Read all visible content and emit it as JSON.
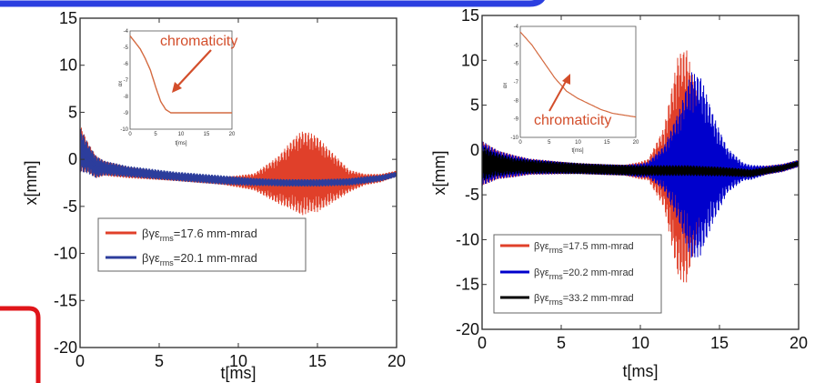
{
  "decor": {
    "frame_color": "#2b3fe0",
    "corner_color": "#e0151a"
  },
  "chart_data": [
    {
      "type": "line",
      "xlabel": "t[ms]",
      "ylabel": "x[mm]",
      "xlim": [
        0,
        20
      ],
      "ylim": [
        -20,
        15
      ],
      "xticks": [
        0,
        5,
        10,
        15,
        20
      ],
      "yticks": [
        -20,
        -15,
        -10,
        -5,
        0,
        5,
        10,
        15
      ],
      "legend_position": "lower-left",
      "series": [
        {
          "legend_prefix": "βγε",
          "legend_sub": "rms",
          "legend_value": "=17.6 mm-mrad",
          "color": "#e0402a",
          "envelope": [
            [
              0,
              1.2
            ],
            [
              1,
              -0.8
            ],
            [
              3,
              -1.4
            ],
            [
              6,
              -1.9
            ],
            [
              9,
              -2.3
            ],
            [
              11,
              -2.4
            ],
            [
              12.5,
              -2.2
            ],
            [
              13.5,
              -1.6
            ],
            [
              14.5,
              -1.4
            ],
            [
              15.5,
              -1.8
            ],
            [
              17,
              -2.3
            ],
            [
              19,
              -2.0
            ],
            [
              20,
              -1.5
            ]
          ],
          "amplitude": [
            [
              0,
              2.5
            ],
            [
              0.5,
              1.6
            ],
            [
              1.5,
              0.8
            ],
            [
              3,
              0.6
            ],
            [
              6,
              0.4
            ],
            [
              9,
              0.4
            ],
            [
              11,
              0.9
            ],
            [
              12.5,
              2.5
            ],
            [
              14,
              4.5
            ],
            [
              15,
              4.0
            ],
            [
              16,
              2.6
            ],
            [
              17,
              1.2
            ],
            [
              18,
              0.6
            ],
            [
              20,
              0.3
            ]
          ]
        },
        {
          "legend_prefix": "βγε",
          "legend_sub": "rms",
          "legend_value": "=20.1 mm-mrad",
          "color": "#2c3d9c",
          "envelope": [
            [
              0,
              1.0
            ],
            [
              1,
              -0.8
            ],
            [
              3,
              -1.3
            ],
            [
              6,
              -1.8
            ],
            [
              9,
              -2.2
            ],
            [
              11,
              -2.4
            ],
            [
              13,
              -2.5
            ],
            [
              15,
              -2.5
            ],
            [
              17,
              -2.4
            ],
            [
              19,
              -2.0
            ],
            [
              20,
              -1.6
            ]
          ],
          "amplitude": [
            [
              0,
              2.4
            ],
            [
              0.5,
              1.6
            ],
            [
              1.5,
              0.8
            ],
            [
              3,
              0.6
            ],
            [
              6,
              0.5
            ],
            [
              9,
              0.5
            ],
            [
              12,
              0.4
            ],
            [
              15,
              0.4
            ],
            [
              18,
              0.4
            ],
            [
              20,
              0.3
            ]
          ]
        }
      ],
      "inset": {
        "ylabel": "αx",
        "xticks": [
          0,
          5,
          10,
          15,
          20
        ],
        "xlim": [
          0,
          20
        ],
        "yticks": [
          -4,
          -5,
          -6,
          -7,
          -8,
          -9,
          -10
        ],
        "ylim": [
          -10,
          -4
        ],
        "xlabel": "t[ms]",
        "curve": [
          [
            0,
            -4.3
          ],
          [
            1,
            -4.7
          ],
          [
            2,
            -5.1
          ],
          [
            3,
            -5.7
          ],
          [
            4,
            -6.4
          ],
          [
            5,
            -7.4
          ],
          [
            6,
            -8.3
          ],
          [
            7,
            -8.8
          ],
          [
            8,
            -9.0
          ],
          [
            10,
            -9.0
          ],
          [
            20,
            -9.0
          ]
        ],
        "color": "#d46a40",
        "annotation": "chromaticity",
        "annotation_color": "#d34e2b"
      }
    },
    {
      "type": "line",
      "xlabel": "t[ms]",
      "ylabel": "x[mm]",
      "xlim": [
        0,
        20
      ],
      "ylim": [
        -20,
        15
      ],
      "xticks": [
        0,
        5,
        10,
        15,
        20
      ],
      "yticks": [
        -20,
        -15,
        -10,
        -5,
        0,
        5,
        10,
        15
      ],
      "legend_position": "lower-left",
      "series": [
        {
          "legend_prefix": "βγε",
          "legend_sub": "rms",
          "legend_value": "=17.5 mm-mrad",
          "color": "#e0402a",
          "envelope": [
            [
              0,
              -1.5
            ],
            [
              2,
              -1.8
            ],
            [
              5,
              -2.0
            ],
            [
              8,
              -2.2
            ],
            [
              10,
              -2.3
            ],
            [
              11,
              -2.1
            ],
            [
              12.5,
              -1.8
            ],
            [
              13.5,
              -1.8
            ],
            [
              15,
              -2.2
            ],
            [
              17,
              -2.5
            ],
            [
              19,
              -2.0
            ],
            [
              20,
              -1.5
            ]
          ],
          "amplitude": [
            [
              0,
              2.5
            ],
            [
              1,
              1.6
            ],
            [
              3,
              0.9
            ],
            [
              6,
              0.6
            ],
            [
              9,
              0.6
            ],
            [
              10.5,
              1.2
            ],
            [
              11.5,
              4.5
            ],
            [
              12.4,
              12.5
            ],
            [
              12.9,
              13.2
            ],
            [
              13.4,
              9.5
            ],
            [
              14.2,
              3.5
            ],
            [
              15,
              1.2
            ],
            [
              16,
              0.6
            ],
            [
              18,
              0.5
            ],
            [
              20,
              0.4
            ]
          ]
        },
        {
          "legend_prefix": "βγε",
          "legend_sub": "rms",
          "legend_value": "=20.2 mm-mrad",
          "color": "#0000cc",
          "envelope": [
            [
              0,
              -1.5
            ],
            [
              2,
              -1.8
            ],
            [
              5,
              -2.0
            ],
            [
              8,
              -2.2
            ],
            [
              10,
              -2.3
            ],
            [
              11,
              -2.1
            ],
            [
              13,
              -1.8
            ],
            [
              14,
              -1.8
            ],
            [
              15,
              -2.2
            ],
            [
              17,
              -2.5
            ],
            [
              19,
              -2.0
            ],
            [
              20,
              -1.5
            ]
          ],
          "amplitude": [
            [
              0,
              2.5
            ],
            [
              1,
              1.6
            ],
            [
              3,
              0.9
            ],
            [
              6,
              0.6
            ],
            [
              9,
              0.6
            ],
            [
              10.5,
              0.9
            ],
            [
              11.5,
              2.5
            ],
            [
              12.5,
              6.5
            ],
            [
              13.2,
              10.5
            ],
            [
              13.8,
              10.0
            ],
            [
              14.6,
              6.0
            ],
            [
              15.5,
              2.5
            ],
            [
              16.5,
              1.0
            ],
            [
              18,
              0.5
            ],
            [
              20,
              0.4
            ]
          ]
        },
        {
          "legend_prefix": "βγε",
          "legend_sub": "rms",
          "legend_value": "=33.2 mm-mrad",
          "color": "#000000",
          "envelope": [
            [
              0,
              -1.5
            ],
            [
              2,
              -1.8
            ],
            [
              5,
              -2.0
            ],
            [
              8,
              -2.2
            ],
            [
              10,
              -2.3
            ],
            [
              13,
              -2.3
            ],
            [
              15,
              -2.4
            ],
            [
              17,
              -2.6
            ],
            [
              19,
              -2.0
            ],
            [
              20,
              -1.5
            ]
          ],
          "amplitude": [
            [
              0,
              2.0
            ],
            [
              0.7,
              1.4
            ],
            [
              2,
              0.9
            ],
            [
              4,
              0.7
            ],
            [
              7,
              0.6
            ],
            [
              10,
              0.6
            ],
            [
              13,
              0.6
            ],
            [
              16,
              0.5
            ],
            [
              18,
              0.4
            ],
            [
              20,
              0.3
            ]
          ]
        }
      ],
      "inset": {
        "ylabel": "αx",
        "xticks": [
          0,
          5,
          10,
          15,
          20
        ],
        "xlim": [
          0,
          20
        ],
        "yticks": [
          -4,
          -5,
          -6,
          -7,
          -8,
          -9,
          -10
        ],
        "ylim": [
          -10,
          -4
        ],
        "xlabel": "t[ms]",
        "curve": [
          [
            0,
            -4.3
          ],
          [
            2,
            -5.0
          ],
          [
            4,
            -5.9
          ],
          [
            6,
            -6.8
          ],
          [
            8,
            -7.5
          ],
          [
            10,
            -7.9
          ],
          [
            12,
            -8.2
          ],
          [
            14,
            -8.5
          ],
          [
            16,
            -8.7
          ],
          [
            18,
            -8.8
          ],
          [
            20,
            -8.9
          ]
        ],
        "color": "#d46a40",
        "annotation": "chromaticity",
        "annotation_color": "#d34e2b"
      }
    }
  ]
}
